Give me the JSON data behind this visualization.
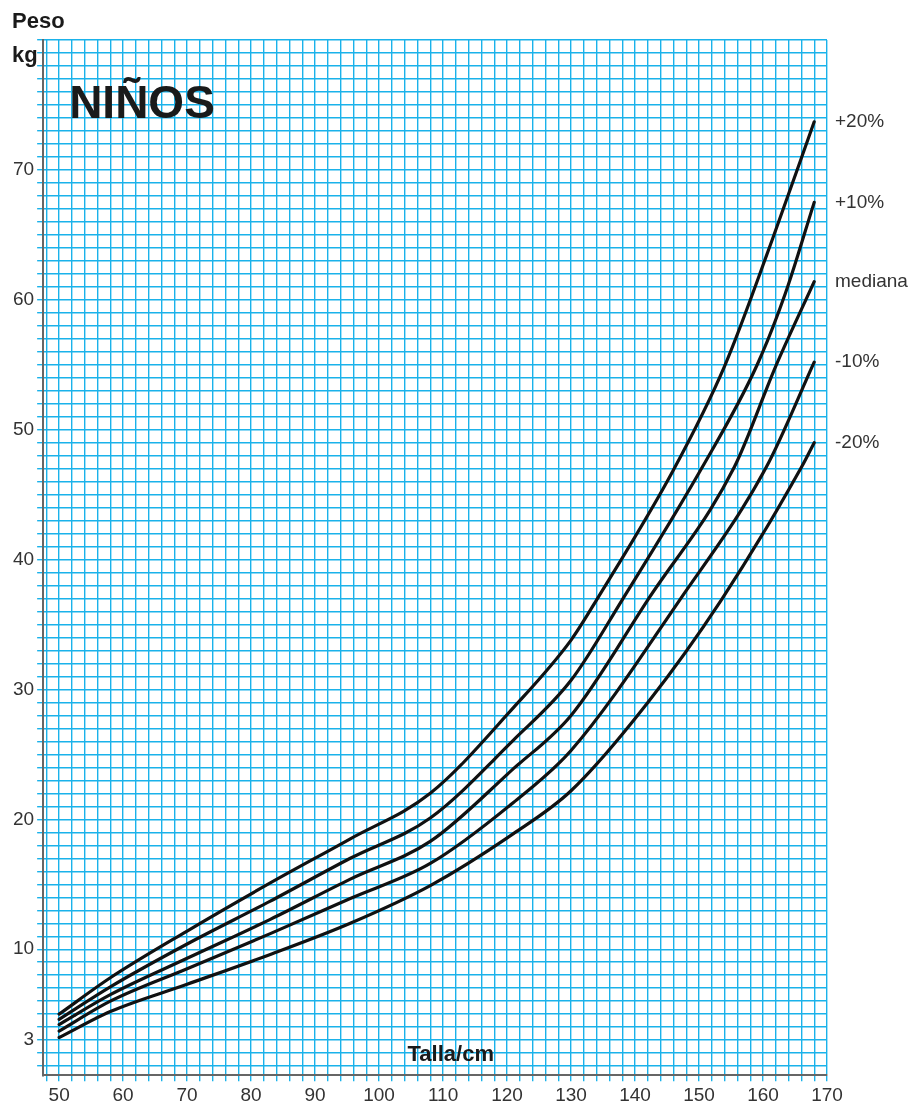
{
  "chart_data": {
    "type": "line",
    "title": "NIÑOS",
    "xlabel": "Talla/cm",
    "ylabel": "Peso kg",
    "xlim": [
      47.5,
      170
    ],
    "ylim": [
      0.3,
      80
    ],
    "xticks": [
      {
        "value": 48,
        "label": null
      },
      50,
      {
        "value": 52,
        "label": null
      },
      {
        "value": 54,
        "label": null
      },
      {
        "value": 56,
        "label": null
      },
      {
        "value": 58,
        "label": null
      },
      60,
      {
        "value": 62,
        "label": null
      },
      {
        "value": 64,
        "label": null
      },
      {
        "value": 66,
        "label": null
      },
      {
        "value": 68,
        "label": null
      },
      70,
      {
        "value": 72,
        "label": null
      },
      {
        "value": 74,
        "label": null
      },
      {
        "value": 76,
        "label": null
      },
      {
        "value": 78,
        "label": null
      },
      80,
      {
        "value": 82,
        "label": null
      },
      {
        "value": 84,
        "label": null
      },
      {
        "value": 86,
        "label": null
      },
      {
        "value": 88,
        "label": null
      },
      90,
      {
        "value": 92,
        "label": null
      },
      {
        "value": 94,
        "label": null
      },
      {
        "value": 96,
        "label": null
      },
      {
        "value": 98,
        "label": null
      },
      100,
      {
        "value": 102,
        "label": null
      },
      {
        "value": 104,
        "label": null
      },
      {
        "value": 106,
        "label": null
      },
      {
        "value": 108,
        "label": null
      },
      110,
      {
        "value": 112,
        "label": null
      },
      {
        "value": 114,
        "label": null
      },
      {
        "value": 116,
        "label": null
      },
      {
        "value": 118,
        "label": null
      },
      120,
      {
        "value": 122,
        "label": null
      },
      {
        "value": 124,
        "label": null
      },
      {
        "value": 126,
        "label": null
      },
      {
        "value": 128,
        "label": null
      },
      130,
      {
        "value": 132,
        "label": null
      },
      {
        "value": 134,
        "label": null
      },
      {
        "value": 136,
        "label": null
      },
      {
        "value": 138,
        "label": null
      },
      140,
      {
        "value": 142,
        "label": null
      },
      {
        "value": 144,
        "label": null
      },
      {
        "value": 146,
        "label": null
      },
      {
        "value": 148,
        "label": null
      },
      150,
      {
        "value": 152,
        "label": null
      },
      {
        "value": 154,
        "label": null
      },
      {
        "value": 156,
        "label": null
      },
      {
        "value": 158,
        "label": null
      },
      160,
      {
        "value": 162,
        "label": null
      },
      {
        "value": 164,
        "label": null
      },
      {
        "value": 166,
        "label": null
      },
      {
        "value": 168,
        "label": null
      },
      170
    ],
    "yticks": [
      {
        "value": 1,
        "label": null
      },
      {
        "value": 2,
        "label": null
      },
      3,
      {
        "value": 4,
        "label": null
      },
      {
        "value": 5,
        "label": null
      },
      {
        "value": 6,
        "label": null
      },
      {
        "value": 7,
        "label": null
      },
      {
        "value": 8,
        "label": null
      },
      {
        "value": 9,
        "label": null
      },
      10,
      {
        "value": 11,
        "label": null
      },
      {
        "value": 12,
        "label": null
      },
      {
        "value": 13,
        "label": null
      },
      {
        "value": 14,
        "label": null
      },
      {
        "value": 15,
        "label": null
      },
      {
        "value": 16,
        "label": null
      },
      {
        "value": 17,
        "label": null
      },
      {
        "value": 18,
        "label": null
      },
      {
        "value": 19,
        "label": null
      },
      20,
      {
        "value": 21,
        "label": null
      },
      {
        "value": 22,
        "label": null
      },
      {
        "value": 23,
        "label": null
      },
      {
        "value": 24,
        "label": null
      },
      {
        "value": 25,
        "label": null
      },
      {
        "value": 26,
        "label": null
      },
      {
        "value": 27,
        "label": null
      },
      {
        "value": 28,
        "label": null
      },
      {
        "value": 29,
        "label": null
      },
      30,
      {
        "value": 31,
        "label": null
      },
      {
        "value": 32,
        "label": null
      },
      {
        "value": 33,
        "label": null
      },
      {
        "value": 34,
        "label": null
      },
      {
        "value": 35,
        "label": null
      },
      {
        "value": 36,
        "label": null
      },
      {
        "value": 37,
        "label": null
      },
      {
        "value": 38,
        "label": null
      },
      {
        "value": 39,
        "label": null
      },
      40,
      {
        "value": 41,
        "label": null
      },
      {
        "value": 42,
        "label": null
      },
      {
        "value": 43,
        "label": null
      },
      {
        "value": 44,
        "label": null
      },
      {
        "value": 45,
        "label": null
      },
      {
        "value": 46,
        "label": null
      },
      {
        "value": 47,
        "label": null
      },
      {
        "value": 48,
        "label": null
      },
      {
        "value": 49,
        "label": null
      },
      50,
      {
        "value": 51,
        "label": null
      },
      {
        "value": 52,
        "label": null
      },
      {
        "value": 53,
        "label": null
      },
      {
        "value": 54,
        "label": null
      },
      {
        "value": 55,
        "label": null
      },
      {
        "value": 56,
        "label": null
      },
      {
        "value": 57,
        "label": null
      },
      {
        "value": 58,
        "label": null
      },
      {
        "value": 59,
        "label": null
      },
      60,
      {
        "value": 61,
        "label": null
      },
      {
        "value": 62,
        "label": null
      },
      {
        "value": 63,
        "label": null
      },
      {
        "value": 64,
        "label": null
      },
      {
        "value": 65,
        "label": null
      },
      {
        "value": 66,
        "label": null
      },
      {
        "value": 67,
        "label": null
      },
      {
        "value": 68,
        "label": null
      },
      {
        "value": 69,
        "label": null
      },
      70,
      {
        "value": 71,
        "label": null
      },
      {
        "value": 72,
        "label": null
      },
      {
        "value": 73,
        "label": null
      },
      {
        "value": 74,
        "label": null
      },
      {
        "value": 75,
        "label": null
      },
      {
        "value": 76,
        "label": null
      },
      {
        "value": 77,
        "label": null
      },
      {
        "value": 78,
        "label": null
      },
      {
        "value": 79,
        "label": null
      },
      {
        "value": 80,
        "label": null
      }
    ],
    "grid": true,
    "legend": false,
    "marker": "none",
    "line_style": "solid",
    "series": [
      {
        "name": "+20%",
        "color": "#111111",
        "x": [
          50,
          58,
          70,
          83,
          95.5,
          108,
          121,
          130,
          134,
          146,
          154,
          161.5,
          168
        ],
        "values": [
          5.0,
          7.8,
          11.4,
          15.1,
          18.5,
          22.0,
          28.6,
          33.8,
          36.9,
          46.9,
          54.9,
          64.7,
          73.7
        ]
      },
      {
        "name": "+10%",
        "color": "#111111",
        "x": [
          50,
          58,
          70,
          83,
          95.5,
          108,
          121,
          130,
          138,
          150.5,
          159,
          163.5,
          168
        ],
        "values": [
          4.6,
          7.1,
          10.4,
          13.7,
          17.0,
          20.1,
          26.1,
          30.7,
          36.9,
          47.1,
          54.9,
          60.5,
          67.5
        ]
      },
      {
        "name": "mediana",
        "color": "#111111",
        "x": [
          50,
          58,
          70,
          83,
          95.5,
          108,
          121,
          130,
          142,
          155.5,
          162,
          168
        ],
        "values": [
          4.2,
          6.5,
          9.3,
          12.3,
          15.4,
          18.3,
          23.9,
          28.0,
          36.9,
          47.1,
          54.9,
          61.4
        ]
      },
      {
        "name": "-10%",
        "color": "#111111",
        "x": [
          50,
          58,
          70,
          83,
          95.5,
          108,
          121,
          130,
          147,
          160.5,
          168
        ],
        "values": [
          3.7,
          6.0,
          8.5,
          11.2,
          13.9,
          16.6,
          21.3,
          25.3,
          36.9,
          47.1,
          55.2
        ]
      },
      {
        "name": "-20%",
        "color": "#111111",
        "x": [
          50,
          58,
          70,
          83,
          95.5,
          108,
          121,
          130,
          142,
          153.5,
          166,
          168
        ],
        "values": [
          3.2,
          5.2,
          7.3,
          9.6,
          12.0,
          14.9,
          18.9,
          22.2,
          29.0,
          36.9,
          47.1,
          49.0
        ]
      }
    ]
  }
}
